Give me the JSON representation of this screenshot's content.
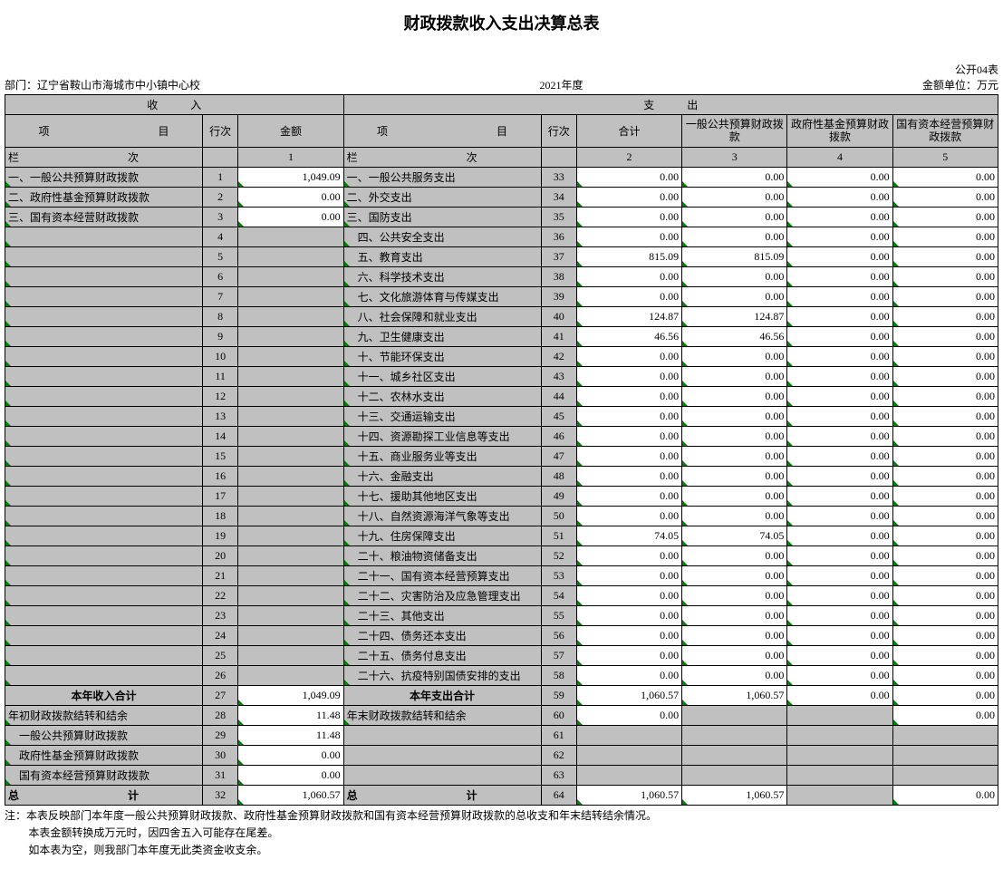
{
  "title": "财政拨款收入支出决算总表",
  "form_code": "公开04表",
  "dept_label": "部门：",
  "dept_name": "辽宁省鞍山市海城市中小镇中心校",
  "year": "2021年度",
  "unit_label": "金额单位：万元",
  "header": {
    "income": "收　　　入",
    "expense": "支　　　出",
    "item": "项　　　　　　　　　　目",
    "row": "行次",
    "amount": "金额",
    "total": "合计",
    "col3": "一般公共预算财政拨款",
    "col4": "政府性基金预算财政拨款",
    "col5": "国有资本经营预算财政拨款",
    "col_label_l": "栏　　　　　　　　　　次",
    "col_label_r": "栏　　　　　　　　　　次",
    "c1": "1",
    "c2": "2",
    "c3": "3",
    "c4": "4",
    "c5": "5"
  },
  "colors": {
    "grey": "#c0c0c0",
    "white": "#ffffff",
    "corner": "#008000",
    "border": "#000000"
  },
  "rows": [
    {
      "li": "一、一般公共预算财政拨款",
      "lr": "1",
      "la": "1,049.09",
      "ri": "一、一般公共服务支出",
      "rr": "33",
      "v": [
        "0.00",
        "0.00",
        "0.00",
        "0.00"
      ],
      "lw": false
    },
    {
      "li": "二、政府性基金预算财政拨款",
      "lr": "2",
      "la": "0.00",
      "ri": "二、外交支出",
      "rr": "34",
      "v": [
        "0.00",
        "0.00",
        "0.00",
        "0.00"
      ],
      "lw": true
    },
    {
      "li": "三、国有资本经营财政拨款",
      "lr": "3",
      "la": "0.00",
      "ri": "三、国防支出",
      "rr": "35",
      "v": [
        "0.00",
        "0.00",
        "0.00",
        "0.00"
      ],
      "lw": true
    },
    {
      "li": "",
      "lr": "4",
      "la": "",
      "ri": "　四、公共安全支出",
      "rr": "36",
      "v": [
        "0.00",
        "0.00",
        "0.00",
        "0.00"
      ],
      "lg": true
    },
    {
      "li": "",
      "lr": "5",
      "la": "",
      "ri": "　五、教育支出",
      "rr": "37",
      "v": [
        "815.09",
        "815.09",
        "0.00",
        "0.00"
      ],
      "lg": true
    },
    {
      "li": "",
      "lr": "6",
      "la": "",
      "ri": "　六、科学技术支出",
      "rr": "38",
      "v": [
        "0.00",
        "0.00",
        "0.00",
        "0.00"
      ],
      "lg": true
    },
    {
      "li": "",
      "lr": "7",
      "la": "",
      "ri": "　七、文化旅游体育与传媒支出",
      "rr": "39",
      "v": [
        "0.00",
        "0.00",
        "0.00",
        "0.00"
      ],
      "lg": true
    },
    {
      "li": "",
      "lr": "8",
      "la": "",
      "ri": "　八、社会保障和就业支出",
      "rr": "40",
      "v": [
        "124.87",
        "124.87",
        "0.00",
        "0.00"
      ],
      "lg": true
    },
    {
      "li": "",
      "lr": "9",
      "la": "",
      "ri": "　九、卫生健康支出",
      "rr": "41",
      "v": [
        "46.56",
        "46.56",
        "0.00",
        "0.00"
      ],
      "lg": true
    },
    {
      "li": "",
      "lr": "10",
      "la": "",
      "ri": "　十、节能环保支出",
      "rr": "42",
      "v": [
        "0.00",
        "0.00",
        "0.00",
        "0.00"
      ],
      "lg": true
    },
    {
      "li": "",
      "lr": "11",
      "la": "",
      "ri": "　十一、城乡社区支出",
      "rr": "43",
      "v": [
        "0.00",
        "0.00",
        "0.00",
        "0.00"
      ],
      "lg": true
    },
    {
      "li": "",
      "lr": "12",
      "la": "",
      "ri": "　十二、农林水支出",
      "rr": "44",
      "v": [
        "0.00",
        "0.00",
        "0.00",
        "0.00"
      ],
      "lg": true
    },
    {
      "li": "",
      "lr": "13",
      "la": "",
      "ri": "　十三、交通运输支出",
      "rr": "45",
      "v": [
        "0.00",
        "0.00",
        "0.00",
        "0.00"
      ],
      "lg": true
    },
    {
      "li": "",
      "lr": "14",
      "la": "",
      "ri": "　十四、资源勘探工业信息等支出",
      "rr": "46",
      "v": [
        "0.00",
        "0.00",
        "0.00",
        "0.00"
      ],
      "lg": true
    },
    {
      "li": "",
      "lr": "15",
      "la": "",
      "ri": "　十五、商业服务业等支出",
      "rr": "47",
      "v": [
        "0.00",
        "0.00",
        "0.00",
        "0.00"
      ],
      "lg": true
    },
    {
      "li": "",
      "lr": "16",
      "la": "",
      "ri": "　十六、金融支出",
      "rr": "48",
      "v": [
        "0.00",
        "0.00",
        "0.00",
        "0.00"
      ],
      "lg": true
    },
    {
      "li": "",
      "lr": "17",
      "la": "",
      "ri": "　十七、援助其他地区支出",
      "rr": "49",
      "v": [
        "0.00",
        "0.00",
        "0.00",
        "0.00"
      ],
      "lg": true
    },
    {
      "li": "",
      "lr": "18",
      "la": "",
      "ri": "　十八、自然资源海洋气象等支出",
      "rr": "50",
      "v": [
        "0.00",
        "0.00",
        "0.00",
        "0.00"
      ],
      "lg": true
    },
    {
      "li": "",
      "lr": "19",
      "la": "",
      "ri": "　十九、住房保障支出",
      "rr": "51",
      "v": [
        "74.05",
        "74.05",
        "0.00",
        "0.00"
      ],
      "lg": true
    },
    {
      "li": "",
      "lr": "20",
      "la": "",
      "ri": "　二十、粮油物资储备支出",
      "rr": "52",
      "v": [
        "0.00",
        "0.00",
        "0.00",
        "0.00"
      ],
      "lg": true
    },
    {
      "li": "",
      "lr": "21",
      "la": "",
      "ri": "　二十一、国有资本经营预算支出",
      "rr": "53",
      "v": [
        "0.00",
        "0.00",
        "0.00",
        "0.00"
      ],
      "lg": true
    },
    {
      "li": "",
      "lr": "22",
      "la": "",
      "ri": "　二十二、灾害防治及应急管理支出",
      "rr": "54",
      "v": [
        "0.00",
        "0.00",
        "0.00",
        "0.00"
      ],
      "lg": true
    },
    {
      "li": "",
      "lr": "23",
      "la": "",
      "ri": "　二十三、其他支出",
      "rr": "55",
      "v": [
        "0.00",
        "0.00",
        "0.00",
        "0.00"
      ],
      "lg": true
    },
    {
      "li": "",
      "lr": "24",
      "la": "",
      "ri": "　二十四、债务还本支出",
      "rr": "56",
      "v": [
        "0.00",
        "0.00",
        "0.00",
        "0.00"
      ],
      "lg": true
    },
    {
      "li": "",
      "lr": "25",
      "la": "",
      "ri": "　二十五、债务付息支出",
      "rr": "57",
      "v": [
        "0.00",
        "0.00",
        "0.00",
        "0.00"
      ],
      "lg": true
    },
    {
      "li": "",
      "lr": "26",
      "la": "",
      "ri": "　二十六、抗疫特别国债安排的支出",
      "rr": "58",
      "v": [
        "0.00",
        "0.00",
        "0.00",
        "0.00"
      ],
      "lg": true
    }
  ],
  "subtotal_in": {
    "label": "本年收入合计",
    "lr": "27",
    "la": "1,049.09"
  },
  "subtotal_out": {
    "label": "本年支出合计",
    "rr": "59",
    "v": [
      "1,060.57",
      "1,060.57",
      "0.00",
      "0.00"
    ]
  },
  "carry_rows": [
    {
      "li": "年初财政拨款结转和结余",
      "lr": "28",
      "la": "11.48",
      "ri": "年末财政拨款结转和结余",
      "rr": "60",
      "v": [
        "0.00",
        "",
        "",
        "0.00"
      ]
    },
    {
      "li": "　一般公共预算财政拨款",
      "lr": "29",
      "la": "11.48",
      "ri": "",
      "rr": "61",
      "v": [
        "",
        "",
        "",
        ""
      ]
    },
    {
      "li": "　政府性基金预算财政拨款",
      "lr": "30",
      "la": "0.00",
      "ri": "",
      "rr": "62",
      "v": [
        "",
        "",
        "",
        ""
      ]
    },
    {
      "li": "　国有资本经营预算财政拨款",
      "lr": "31",
      "la": "0.00",
      "ri": "",
      "rr": "63",
      "v": [
        "",
        "",
        "",
        ""
      ]
    }
  ],
  "total_row": {
    "li": "总　　　　　　　　　　计",
    "lr": "32",
    "la": "1,060.57",
    "ri": "总　　　　　　　　　　计",
    "rr": "64",
    "v": [
      "1,060.57",
      "1,060.57",
      "",
      "0.00"
    ]
  },
  "notes": [
    "注：本表反映部门本年度一般公共预算财政拨款、政府性基金预算财政拨款和国有资本经营预算财政拨款的总收支和年末结转结余情况。",
    "本表金额转换成万元时，因四舍五入可能存在尾差。",
    "如本表为空，则我部门本年度无此类资金收支余。"
  ]
}
